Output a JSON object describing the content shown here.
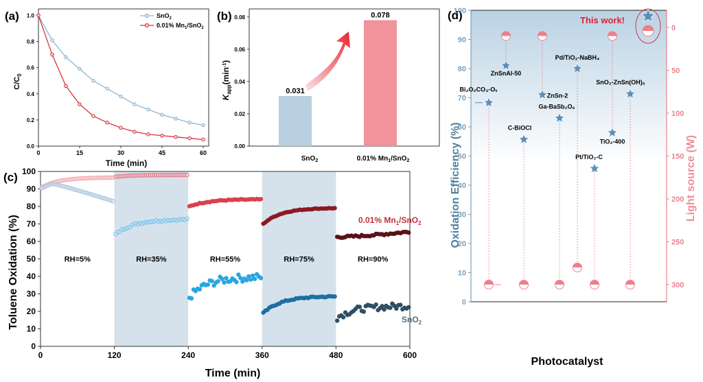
{
  "chart_data": [
    {
      "id": "a",
      "panel_label": "(a)",
      "type": "line",
      "xlabel": "Time (min)",
      "ylabel": "C/C0",
      "xlim": [
        0,
        62
      ],
      "ylim": [
        0,
        1.05
      ],
      "xticks": [
        0,
        15,
        30,
        45,
        60
      ],
      "yticks": [
        0.0,
        0.2,
        0.4,
        0.6,
        0.8,
        1.0
      ],
      "ytick_labels": [
        "0.0",
        "0.2",
        "0.4",
        "0.6",
        "0.8",
        "1.0"
      ],
      "legend_position": "top-right",
      "x": [
        0,
        5,
        10,
        15,
        20,
        25,
        30,
        35,
        40,
        45,
        50,
        55,
        60
      ],
      "series": [
        {
          "name": "SnO2",
          "label_main": "SnO",
          "label_sub": "2",
          "color": "#8fb4cf",
          "values": [
            1.0,
            0.81,
            0.68,
            0.59,
            0.5,
            0.44,
            0.38,
            0.32,
            0.28,
            0.24,
            0.21,
            0.18,
            0.16
          ]
        },
        {
          "name": "0.01% Mn1/SnO2",
          "color": "#d9323f",
          "values": [
            1.0,
            0.7,
            0.46,
            0.32,
            0.23,
            0.18,
            0.14,
            0.11,
            0.09,
            0.08,
            0.07,
            0.06,
            0.05
          ]
        }
      ]
    },
    {
      "id": "b",
      "panel_label": "(b)",
      "type": "bar",
      "ylabel": "Kapp(min-1)",
      "ylim": [
        0,
        0.085
      ],
      "yticks": [
        0.0,
        0.02,
        0.04,
        0.06,
        0.08
      ],
      "ytick_labels": [
        "0.00",
        "0.02",
        "0.04",
        "0.06",
        "0.08"
      ],
      "categories": [
        "SnO2",
        "0.01% Mn1/SnO2"
      ],
      "values": [
        0.031,
        0.078
      ],
      "value_labels": [
        "0.031",
        "0.078"
      ],
      "colors": [
        "#b8cfdf",
        "#f2939b"
      ],
      "annotation": "red curved arrow from SnO2 bar to Mn1/SnO2 bar"
    },
    {
      "id": "c",
      "panel_label": "(c)",
      "type": "scatter",
      "xlabel": "Time (min)",
      "ylabel": "Toluene Oxidation (%)",
      "xlim": [
        0,
        600
      ],
      "ylim": [
        0,
        100
      ],
      "xticks": [
        0,
        120,
        240,
        360,
        480,
        600
      ],
      "yticks": [
        0,
        10,
        20,
        30,
        40,
        50,
        60,
        70,
        80,
        90,
        100
      ],
      "shaded_bands": [
        [
          120,
          240
        ],
        [
          360,
          480
        ]
      ],
      "band_color": "#d5e2ec",
      "segments": [
        {
          "label": "RH=5%",
          "x0": 0,
          "x1": 120,
          "mn": {
            "color": "#f2a9ae",
            "start": 91,
            "end": 96.5,
            "shape": "rise",
            "noise": 0
          },
          "sno2": {
            "color": "#a9c4da",
            "start": 90.5,
            "peak": 93,
            "end": 83,
            "shape": "peak-decline",
            "noise": 0
          }
        },
        {
          "label": "RH=35%",
          "x0": 120,
          "x1": 240,
          "mn": {
            "color": "#e4808a",
            "start": 97,
            "end": 98,
            "shape": "rise",
            "noise": 0
          },
          "sno2": {
            "color": "#7cc0e8",
            "start": 64,
            "end": 72.5,
            "shape": "rise",
            "noise": 0.6
          }
        },
        {
          "label": "RH=55%",
          "x0": 240,
          "x1": 360,
          "mn": {
            "color": "#d9404e",
            "start": 80,
            "end": 84,
            "shape": "rise",
            "noise": 0.3
          },
          "sno2": {
            "color": "#2aa6e0",
            "start": 28,
            "end": 39.5,
            "shape": "rise",
            "noise": 2.2
          }
        },
        {
          "label": "RH=75%",
          "x0": 360,
          "x1": 480,
          "mn": {
            "color": "#8c1a22",
            "start": 70,
            "end": 79,
            "shape": "rise",
            "noise": 0.2
          },
          "sno2": {
            "color": "#1f6fa3",
            "start": 19,
            "end": 28.5,
            "shape": "rise",
            "noise": 0.4
          }
        },
        {
          "label": "RH=90%",
          "x0": 480,
          "x1": 600,
          "mn": {
            "color": "#5a1218",
            "start": 62.5,
            "end": 65.5,
            "shape": "flat-rise",
            "noise": 0.6
          },
          "sno2": {
            "color": "#2f4f62",
            "start": 16.5,
            "end": 23,
            "shape": "rise",
            "noise": 1.8
          }
        }
      ],
      "annotations": [
        {
          "text": "0.01% Mn1/SnO2",
          "color": "#c0303c"
        },
        {
          "text": "SnO2",
          "color": "#4f6f84"
        }
      ]
    },
    {
      "id": "d",
      "panel_label": "(d)",
      "type": "scatter",
      "xlabel": "Photocatalyst",
      "ylabel": "Oxidation Efficiency (%)",
      "y2label": "Light source (W)",
      "ylim": [
        0,
        100
      ],
      "yticks": [
        0,
        10,
        20,
        30,
        40,
        50,
        60,
        70,
        80,
        90,
        100
      ],
      "y2lim": [
        320,
        -20
      ],
      "y2ticks": [
        0,
        50,
        100,
        150,
        200,
        250,
        300
      ],
      "left_axis_color": "#7a9fb8",
      "right_axis_color": "#e8838c",
      "highlight_text": "This work!",
      "highlight_color": "#e0202e",
      "points": [
        {
          "name": "Bi2O2CO3-Ov",
          "efficiency": 68.3,
          "light_w": 300
        },
        {
          "name": "ZnSnAl-50",
          "efficiency": 81,
          "light_w": 10
        },
        {
          "name": "C-BiOCl",
          "efficiency": 55.7,
          "light_w": 300
        },
        {
          "name": "ZnSn-2",
          "efficiency": 71,
          "light_w": 10
        },
        {
          "name": "Ga-BaSb2O6",
          "efficiency": 63,
          "light_w": 300
        },
        {
          "name": "Pd/TiO2-NaBH4",
          "efficiency": 80,
          "light_w": 280
        },
        {
          "name": "Pt/TiO2-C",
          "efficiency": 45.7,
          "light_w": 300
        },
        {
          "name": "TiO2-400",
          "efficiency": 58,
          "light_w": 10
        },
        {
          "name": "SnO2-ZnSn(OH)6",
          "efficiency": 71.3,
          "light_w": 300
        },
        {
          "name": "This work",
          "efficiency": 98,
          "light_w": 4
        }
      ]
    }
  ]
}
